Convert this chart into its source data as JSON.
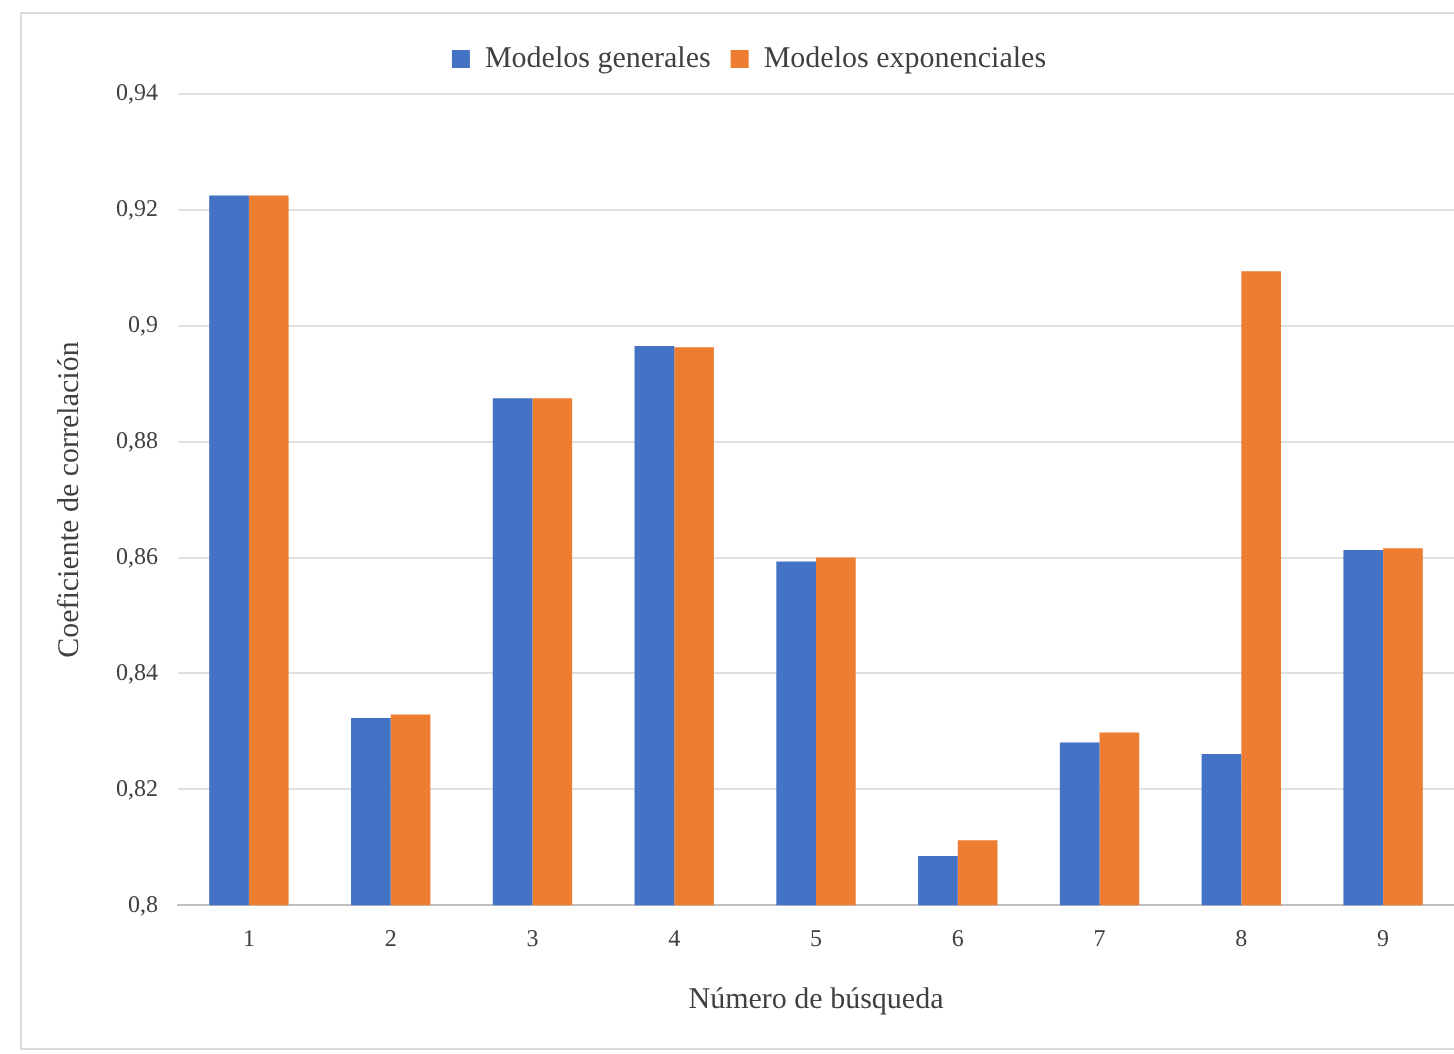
{
  "chart_data": {
    "type": "bar",
    "xlabel": "Número de búsqueda",
    "ylabel": "Coeficiente de correlación",
    "categories": [
      "1",
      "2",
      "3",
      "4",
      "5",
      "6",
      "7",
      "8",
      "9"
    ],
    "series": [
      {
        "name": "Modelos generales",
        "color": "#4472c4",
        "values": [
          0.9225,
          0.8323,
          0.8875,
          0.8965,
          0.8593,
          0.8085,
          0.8281,
          0.8261,
          0.8613
        ]
      },
      {
        "name": "Modelos exponenciales",
        "color": "#ed7d31",
        "values": [
          0.9225,
          0.8329,
          0.8875,
          0.8963,
          0.86,
          0.8112,
          0.8298,
          0.9094,
          0.8616
        ]
      }
    ],
    "ylim": [
      0.8,
      0.94
    ],
    "yticks": [
      {
        "value": 0.8,
        "label": "0,8"
      },
      {
        "value": 0.82,
        "label": "0,82"
      },
      {
        "value": 0.84,
        "label": "0,84"
      },
      {
        "value": 0.86,
        "label": "0,86"
      },
      {
        "value": 0.88,
        "label": "0,88"
      },
      {
        "value": 0.9,
        "label": "0,9"
      },
      {
        "value": 0.92,
        "label": "0,92"
      },
      {
        "value": 0.94,
        "label": "0,94"
      }
    ],
    "grid": "y",
    "legend": "top"
  }
}
